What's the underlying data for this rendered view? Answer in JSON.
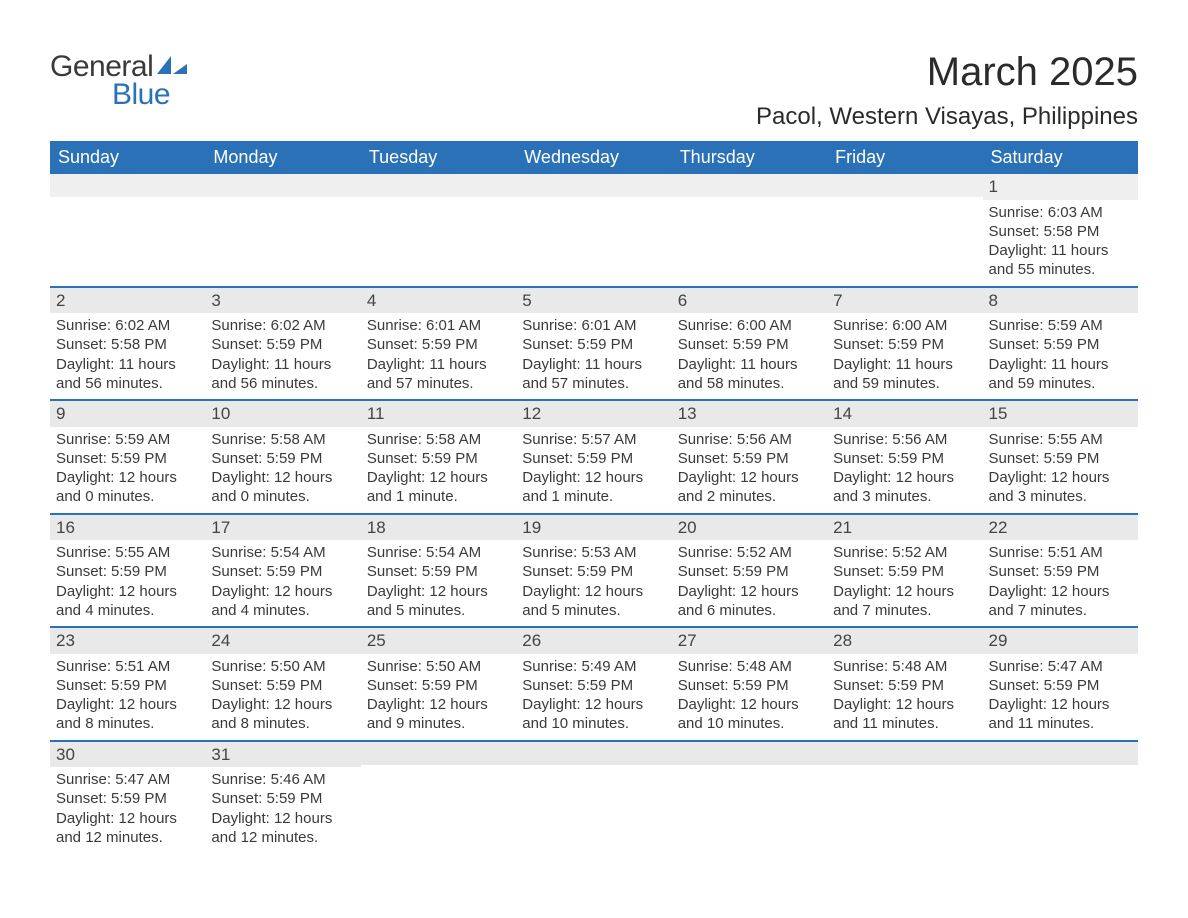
{
  "logo": {
    "text_top": "General",
    "text_bottom": "Blue",
    "swoosh_color": "#2a71b8",
    "text_top_color": "#3a3a3a",
    "text_bottom_color": "#2a71b8"
  },
  "header": {
    "month_title": "March 2025",
    "location": "Pacol, Western Visayas, Philippines"
  },
  "colors": {
    "header_bg": "#2a71b8",
    "header_fg": "#ffffff",
    "daynum_bg": "#e9e9e9",
    "row_divider": "#2a71b8",
    "body_text": "#3a3a3a",
    "page_bg": "#ffffff"
  },
  "weekdays": [
    "Sunday",
    "Monday",
    "Tuesday",
    "Wednesday",
    "Thursday",
    "Friday",
    "Saturday"
  ],
  "weeks": [
    [
      null,
      null,
      null,
      null,
      null,
      null,
      {
        "d": "1",
        "sr": "Sunrise: 6:03 AM",
        "ss": "Sunset: 5:58 PM",
        "dl1": "Daylight: 11 hours",
        "dl2": "and 55 minutes."
      }
    ],
    [
      {
        "d": "2",
        "sr": "Sunrise: 6:02 AM",
        "ss": "Sunset: 5:58 PM",
        "dl1": "Daylight: 11 hours",
        "dl2": "and 56 minutes."
      },
      {
        "d": "3",
        "sr": "Sunrise: 6:02 AM",
        "ss": "Sunset: 5:59 PM",
        "dl1": "Daylight: 11 hours",
        "dl2": "and 56 minutes."
      },
      {
        "d": "4",
        "sr": "Sunrise: 6:01 AM",
        "ss": "Sunset: 5:59 PM",
        "dl1": "Daylight: 11 hours",
        "dl2": "and 57 minutes."
      },
      {
        "d": "5",
        "sr": "Sunrise: 6:01 AM",
        "ss": "Sunset: 5:59 PM",
        "dl1": "Daylight: 11 hours",
        "dl2": "and 57 minutes."
      },
      {
        "d": "6",
        "sr": "Sunrise: 6:00 AM",
        "ss": "Sunset: 5:59 PM",
        "dl1": "Daylight: 11 hours",
        "dl2": "and 58 minutes."
      },
      {
        "d": "7",
        "sr": "Sunrise: 6:00 AM",
        "ss": "Sunset: 5:59 PM",
        "dl1": "Daylight: 11 hours",
        "dl2": "and 59 minutes."
      },
      {
        "d": "8",
        "sr": "Sunrise: 5:59 AM",
        "ss": "Sunset: 5:59 PM",
        "dl1": "Daylight: 11 hours",
        "dl2": "and 59 minutes."
      }
    ],
    [
      {
        "d": "9",
        "sr": "Sunrise: 5:59 AM",
        "ss": "Sunset: 5:59 PM",
        "dl1": "Daylight: 12 hours",
        "dl2": "and 0 minutes."
      },
      {
        "d": "10",
        "sr": "Sunrise: 5:58 AM",
        "ss": "Sunset: 5:59 PM",
        "dl1": "Daylight: 12 hours",
        "dl2": "and 0 minutes."
      },
      {
        "d": "11",
        "sr": "Sunrise: 5:58 AM",
        "ss": "Sunset: 5:59 PM",
        "dl1": "Daylight: 12 hours",
        "dl2": "and 1 minute."
      },
      {
        "d": "12",
        "sr": "Sunrise: 5:57 AM",
        "ss": "Sunset: 5:59 PM",
        "dl1": "Daylight: 12 hours",
        "dl2": "and 1 minute."
      },
      {
        "d": "13",
        "sr": "Sunrise: 5:56 AM",
        "ss": "Sunset: 5:59 PM",
        "dl1": "Daylight: 12 hours",
        "dl2": "and 2 minutes."
      },
      {
        "d": "14",
        "sr": "Sunrise: 5:56 AM",
        "ss": "Sunset: 5:59 PM",
        "dl1": "Daylight: 12 hours",
        "dl2": "and 3 minutes."
      },
      {
        "d": "15",
        "sr": "Sunrise: 5:55 AM",
        "ss": "Sunset: 5:59 PM",
        "dl1": "Daylight: 12 hours",
        "dl2": "and 3 minutes."
      }
    ],
    [
      {
        "d": "16",
        "sr": "Sunrise: 5:55 AM",
        "ss": "Sunset: 5:59 PM",
        "dl1": "Daylight: 12 hours",
        "dl2": "and 4 minutes."
      },
      {
        "d": "17",
        "sr": "Sunrise: 5:54 AM",
        "ss": "Sunset: 5:59 PM",
        "dl1": "Daylight: 12 hours",
        "dl2": "and 4 minutes."
      },
      {
        "d": "18",
        "sr": "Sunrise: 5:54 AM",
        "ss": "Sunset: 5:59 PM",
        "dl1": "Daylight: 12 hours",
        "dl2": "and 5 minutes."
      },
      {
        "d": "19",
        "sr": "Sunrise: 5:53 AM",
        "ss": "Sunset: 5:59 PM",
        "dl1": "Daylight: 12 hours",
        "dl2": "and 5 minutes."
      },
      {
        "d": "20",
        "sr": "Sunrise: 5:52 AM",
        "ss": "Sunset: 5:59 PM",
        "dl1": "Daylight: 12 hours",
        "dl2": "and 6 minutes."
      },
      {
        "d": "21",
        "sr": "Sunrise: 5:52 AM",
        "ss": "Sunset: 5:59 PM",
        "dl1": "Daylight: 12 hours",
        "dl2": "and 7 minutes."
      },
      {
        "d": "22",
        "sr": "Sunrise: 5:51 AM",
        "ss": "Sunset: 5:59 PM",
        "dl1": "Daylight: 12 hours",
        "dl2": "and 7 minutes."
      }
    ],
    [
      {
        "d": "23",
        "sr": "Sunrise: 5:51 AM",
        "ss": "Sunset: 5:59 PM",
        "dl1": "Daylight: 12 hours",
        "dl2": "and 8 minutes."
      },
      {
        "d": "24",
        "sr": "Sunrise: 5:50 AM",
        "ss": "Sunset: 5:59 PM",
        "dl1": "Daylight: 12 hours",
        "dl2": "and 8 minutes."
      },
      {
        "d": "25",
        "sr": "Sunrise: 5:50 AM",
        "ss": "Sunset: 5:59 PM",
        "dl1": "Daylight: 12 hours",
        "dl2": "and 9 minutes."
      },
      {
        "d": "26",
        "sr": "Sunrise: 5:49 AM",
        "ss": "Sunset: 5:59 PM",
        "dl1": "Daylight: 12 hours",
        "dl2": "and 10 minutes."
      },
      {
        "d": "27",
        "sr": "Sunrise: 5:48 AM",
        "ss": "Sunset: 5:59 PM",
        "dl1": "Daylight: 12 hours",
        "dl2": "and 10 minutes."
      },
      {
        "d": "28",
        "sr": "Sunrise: 5:48 AM",
        "ss": "Sunset: 5:59 PM",
        "dl1": "Daylight: 12 hours",
        "dl2": "and 11 minutes."
      },
      {
        "d": "29",
        "sr": "Sunrise: 5:47 AM",
        "ss": "Sunset: 5:59 PM",
        "dl1": "Daylight: 12 hours",
        "dl2": "and 11 minutes."
      }
    ],
    [
      {
        "d": "30",
        "sr": "Sunrise: 5:47 AM",
        "ss": "Sunset: 5:59 PM",
        "dl1": "Daylight: 12 hours",
        "dl2": "and 12 minutes."
      },
      {
        "d": "31",
        "sr": "Sunrise: 5:46 AM",
        "ss": "Sunset: 5:59 PM",
        "dl1": "Daylight: 12 hours",
        "dl2": "and 12 minutes."
      },
      null,
      null,
      null,
      null,
      null
    ]
  ]
}
